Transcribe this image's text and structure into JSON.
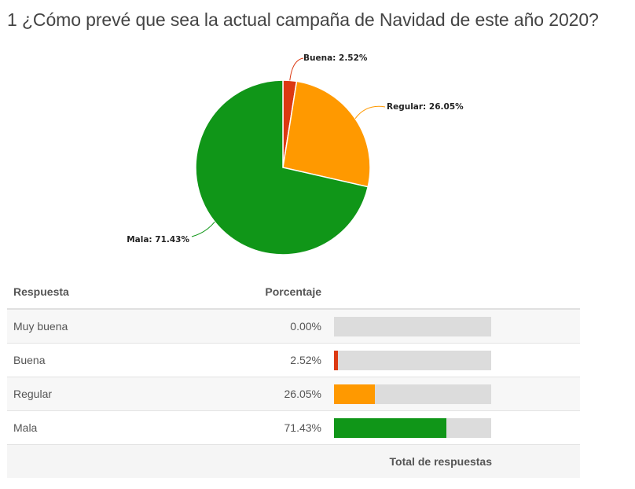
{
  "question": {
    "title": "1 ¿Cómo prevé que sea la actual campaña de Navidad de este año 2020?"
  },
  "chart_data": {
    "type": "pie",
    "slices": [
      {
        "label": "Buena",
        "value": 2.52,
        "display": "Buena: 2.52%",
        "color": "#dc3912"
      },
      {
        "label": "Regular",
        "value": 26.05,
        "display": "Regular: 26.05%",
        "color": "#ff9900"
      },
      {
        "label": "Mala",
        "value": 71.43,
        "display": "Mala: 71.43%",
        "color": "#109618"
      }
    ]
  },
  "table": {
    "headers": {
      "answer": "Respuesta",
      "percentage": "Porcentaje"
    },
    "rows": [
      {
        "answer": "Muy buena",
        "percentage": "0.00%",
        "value": 0.0,
        "color": "#3366cc"
      },
      {
        "answer": "Buena",
        "percentage": "2.52%",
        "value": 2.52,
        "color": "#dc3912"
      },
      {
        "answer": "Regular",
        "percentage": "26.05%",
        "value": 26.05,
        "color": "#ff9900"
      },
      {
        "answer": "Mala",
        "percentage": "71.43%",
        "value": 71.43,
        "color": "#109618"
      }
    ],
    "footer": "Total de respuestas"
  },
  "colors": {
    "track": "#dcdcdc",
    "text": "#555555"
  }
}
